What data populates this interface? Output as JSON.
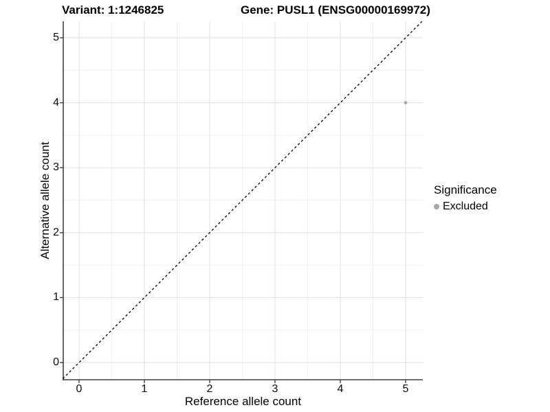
{
  "header": {
    "variant_title": "Variant: 1:1246825",
    "gene_title": "Gene: PUSL1 (ENSG00000169972)"
  },
  "chart_data": {
    "type": "scatter",
    "title": "Variant: 1:1246825 / Gene: PUSL1 (ENSG00000169972)",
    "xlabel": "Reference allele count",
    "ylabel": "Alternative allele count",
    "xlim": [
      -0.25,
      5.25
    ],
    "ylim": [
      -0.25,
      5.25
    ],
    "x_ticks": [
      0,
      1,
      2,
      3,
      4,
      5
    ],
    "y_ticks": [
      0,
      1,
      2,
      3,
      4,
      5
    ],
    "grid": {
      "major": true,
      "minor": true
    },
    "reference_line": {
      "type": "identity",
      "equation": "y = x",
      "style": "dashed",
      "color": "#000000"
    },
    "series": [
      {
        "name": "Excluded",
        "color": "#a8a8a8",
        "points": [
          {
            "x": 5,
            "y": 4
          }
        ]
      }
    ],
    "legend": {
      "title": "Significance",
      "position": "right",
      "entries": [
        {
          "label": "Excluded",
          "color": "#a8a8a8"
        }
      ]
    }
  },
  "colors": {
    "background": "#ffffff",
    "major_grid": "#e4e4e4",
    "minor_grid": "#f1f1f1",
    "axis_line": "#3f3f3f",
    "tick_mark": "#3f3f3f",
    "diagonal": "#000000",
    "point": "#a8a8a8",
    "text": "#000000"
  }
}
